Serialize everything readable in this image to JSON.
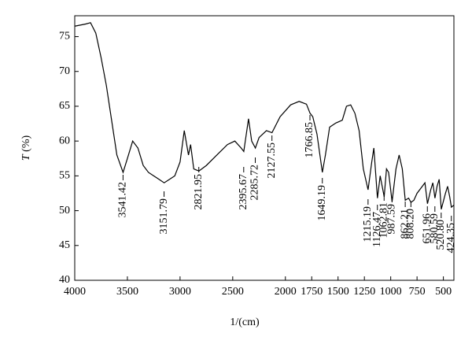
{
  "chart_data": {
    "type": "line",
    "xlabel": "1/(cm)",
    "ylabel_italic": "T",
    "ylabel": "(%)",
    "xlim": [
      4000,
      400
    ],
    "ylim": [
      40,
      78
    ],
    "xticks": [
      4000,
      3500,
      3000,
      2500,
      2000,
      1750,
      1500,
      1250,
      1000,
      750,
      500
    ],
    "yticks": [
      40,
      45,
      50,
      55,
      60,
      65,
      70,
      75
    ],
    "grid": false,
    "color": "#000000",
    "x": [
      4000,
      3900,
      3850,
      3800,
      3750,
      3700,
      3650,
      3600,
      3541,
      3500,
      3450,
      3400,
      3350,
      3300,
      3250,
      3200,
      3151,
      3100,
      3050,
      3000,
      2960,
      2920,
      2900,
      2870,
      2821,
      2750,
      2650,
      2550,
      2480,
      2420,
      2395,
      2350,
      2320,
      2285,
      2250,
      2180,
      2127,
      2050,
      1950,
      1870,
      1800,
      1766,
      1740,
      1700,
      1649,
      1620,
      1580,
      1520,
      1460,
      1420,
      1380,
      1340,
      1300,
      1260,
      1215,
      1180,
      1160,
      1126,
      1100,
      1062,
      1040,
      1020,
      987,
      950,
      920,
      890,
      862,
      830,
      808,
      780,
      750,
      700,
      675,
      651,
      620,
      600,
      580,
      560,
      540,
      520,
      480,
      460,
      440,
      424,
      400
    ],
    "values": [
      76.5,
      76.8,
      77,
      75.5,
      72,
      68,
      63,
      58,
      55.5,
      57.5,
      60,
      59,
      56.5,
      55.5,
      55,
      54.5,
      54,
      54.5,
      55,
      57,
      61.5,
      58,
      59.5,
      56,
      55.7,
      56.5,
      58,
      59.5,
      60,
      59,
      58.5,
      63.2,
      60,
      59,
      60.5,
      61.5,
      61.2,
      63.5,
      65.2,
      65.7,
      65.3,
      64,
      63.5,
      61,
      55.5,
      58,
      62,
      62.6,
      63,
      65,
      65.2,
      64,
      61.5,
      56,
      53,
      57,
      59,
      51.8,
      55,
      52,
      56,
      55.5,
      51.3,
      56,
      58,
      56,
      51.5,
      51.8,
      51.2,
      51.5,
      52.5,
      53.5,
      54,
      51,
      53,
      54,
      51.8,
      53.5,
      54.5,
      50.2,
      52.5,
      53.5,
      52,
      50.5,
      50.8
    ],
    "peaks": [
      3541.42,
      3151.79,
      2821.95,
      2395.67,
      2285.72,
      2127.55,
      1766.85,
      1649.19,
      1215.19,
      1126.47,
      1062.81,
      987.59,
      862.21,
      {
        "value": 808.2,
        "label": "808.20"
      },
      651.96,
      580.59,
      {
        "value": 520.8,
        "label": "520.80"
      },
      424.35
    ]
  }
}
